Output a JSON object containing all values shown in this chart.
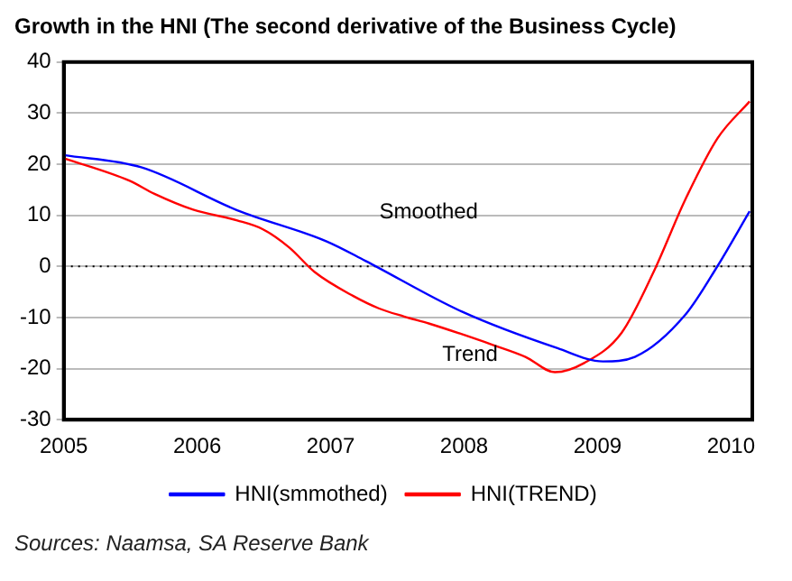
{
  "chart_data": {
    "type": "line",
    "title": "Growth in the HNI (The second derivative of the Business Cycle)",
    "series": [
      {
        "name": "HNI(smmothed)",
        "color": "#0000ff",
        "x": [
          2005,
          2005.58,
          2006.3,
          2006.97,
          2007.26,
          2007.98,
          2008.7,
          2009.04,
          2009.28,
          2009.66,
          2009.9,
          2010.14
        ],
        "values": [
          21.8,
          19.4,
          11,
          4.9,
          1.1,
          -8.8,
          -16,
          -18.6,
          -17.7,
          -9.4,
          0.1,
          10.8
        ]
      },
      {
        "name": "HNI(TREND)",
        "color": "#ff0000",
        "x": [
          2005,
          2005.49,
          2005.68,
          2005.97,
          2006.3,
          2006.49,
          2006.69,
          2006.88,
          2007.17,
          2007.36,
          2007.55,
          2007.74,
          2008.22,
          2008.46,
          2008.68,
          2008.9,
          2009.18,
          2009.42,
          2009.66,
          2009.9,
          2010.14
        ],
        "values": [
          21.2,
          16.8,
          14.2,
          11.1,
          9,
          7.3,
          3.7,
          -1.1,
          -5.8,
          -8.2,
          -9.8,
          -11.2,
          -15.4,
          -17.7,
          -20.7,
          -18.9,
          -13,
          -1.1,
          13.2,
          25.1,
          32.3
        ]
      }
    ],
    "xlim": [
      2005,
      2010.16
    ],
    "xticks": [
      2005,
      2006,
      2007,
      2008,
      2009,
      2010
    ],
    "ylim": [
      -30,
      40
    ],
    "yticks": [
      -30,
      -20,
      -10,
      0,
      10,
      20,
      30,
      40
    ],
    "grid": "y",
    "legend": "bottom",
    "marker": "none",
    "line_style": "solid",
    "ref_lines": [
      {
        "axis": "y",
        "value": 0,
        "color": "#000000",
        "line_style": "dotted"
      }
    ],
    "annotations": [
      "Smoothed",
      "Trend",
      "Sources: Naamsa, SA Reserve Bank"
    ]
  }
}
